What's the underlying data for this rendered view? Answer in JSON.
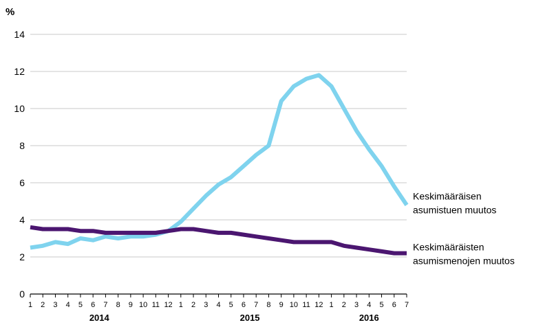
{
  "chart_data": {
    "type": "line",
    "title": "",
    "unit_label": "%",
    "ylim": [
      0,
      14
    ],
    "y_ticks": [
      0,
      2,
      4,
      6,
      8,
      10,
      12,
      14
    ],
    "grid": true,
    "x_tick_labels": [
      "1",
      "2",
      "3",
      "4",
      "5",
      "6",
      "7",
      "8",
      "9",
      "10",
      "11",
      "12",
      "1",
      "2",
      "3",
      "4",
      "5",
      "6",
      "7",
      "8",
      "9",
      "10",
      "11",
      "12",
      "1",
      "2",
      "3",
      "4",
      "5",
      "6",
      "7"
    ],
    "years": [
      {
        "label": "2014",
        "month_index": 5.5
      },
      {
        "label": "2015",
        "month_index": 17.5
      },
      {
        "label": "2016",
        "month_index": 27
      }
    ],
    "series": [
      {
        "name_lines": [
          "Keskimääräisen",
          "asumistuen muutos"
        ],
        "color": "#7fd3ee",
        "values": [
          2.5,
          2.6,
          2.8,
          2.7,
          3.0,
          2.9,
          3.1,
          3.0,
          3.1,
          3.1,
          3.2,
          3.4,
          3.9,
          4.6,
          5.3,
          5.9,
          6.3,
          6.9,
          7.5,
          8.0,
          10.4,
          11.2,
          11.6,
          11.8,
          11.2,
          10.0,
          8.8,
          7.8,
          6.9,
          5.8,
          4.8
        ]
      },
      {
        "name_lines": [
          "Keskimääräisten",
          "asumismenojen muutos"
        ],
        "color": "#4b1670",
        "values": [
          3.6,
          3.5,
          3.5,
          3.5,
          3.4,
          3.4,
          3.3,
          3.3,
          3.3,
          3.3,
          3.3,
          3.4,
          3.5,
          3.5,
          3.4,
          3.3,
          3.3,
          3.2,
          3.1,
          3.0,
          2.9,
          2.8,
          2.8,
          2.8,
          2.8,
          2.6,
          2.5,
          2.4,
          2.3,
          2.2,
          2.2
        ]
      }
    ]
  }
}
